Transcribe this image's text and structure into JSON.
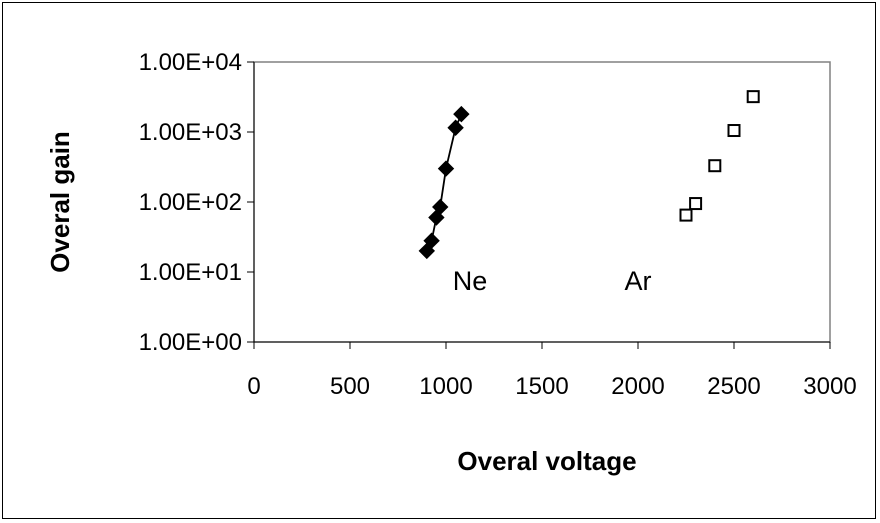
{
  "chart_data": {
    "type": "scatter",
    "xlabel": "Overal voltage",
    "ylabel": "Overal gain",
    "xlim": [
      0,
      3000
    ],
    "ylim": [
      1,
      10000
    ],
    "y_scale": "log",
    "x_ticks": [
      "0",
      "500",
      "1000",
      "1500",
      "2000",
      "2500",
      "3000"
    ],
    "y_ticks": [
      "1.00E+00",
      "1.00E+01",
      "1.00E+02",
      "1.00E+03",
      "1.00E+04"
    ],
    "grid": false,
    "legend": "none",
    "series": [
      {
        "name": "Ne",
        "marker": "filled-diamond",
        "color": "#000000",
        "line": true,
        "x": [
          900,
          925,
          950,
          970,
          1000,
          1050,
          1080
        ],
        "y": [
          20,
          28,
          60,
          85,
          300,
          1150,
          1800
        ]
      },
      {
        "name": "Ar",
        "marker": "open-square",
        "color": "#000000",
        "line": false,
        "x": [
          2250,
          2300,
          2400,
          2500,
          2600
        ],
        "y": [
          65,
          95,
          330,
          1050,
          3200
        ]
      }
    ],
    "annotations": [
      {
        "text": "Ne",
        "x": 1125,
        "y": 5.5
      },
      {
        "text": "Ar",
        "x": 2000,
        "y": 5.5
      }
    ]
  }
}
